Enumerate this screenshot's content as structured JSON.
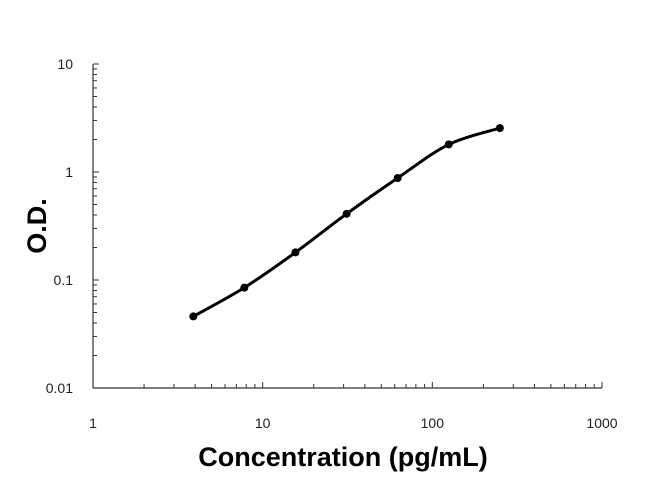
{
  "chart_data": {
    "type": "scatter",
    "title": "",
    "xlabel": "Concentration (pg/mL)",
    "ylabel": "O.D.",
    "xscale": "log",
    "yscale": "log",
    "xlim": [
      1,
      1000
    ],
    "ylim": [
      0.01,
      10
    ],
    "x_ticks": [
      1,
      10,
      100,
      1000
    ],
    "x_tick_labels": [
      "1",
      "10",
      "100",
      "1000"
    ],
    "y_ticks": [
      0.01,
      0.1,
      1,
      10
    ],
    "y_tick_labels": [
      "0.01",
      "0.1",
      "1",
      "10"
    ],
    "grid": false,
    "legend": "none",
    "series": [
      {
        "x": [
          3.9,
          7.8,
          15.6,
          31.25,
          62.5,
          125,
          250
        ],
        "y": [
          0.046,
          0.085,
          0.18,
          0.41,
          0.88,
          1.8,
          2.55
        ],
        "marker": "circle",
        "fit_line": "smooth curve",
        "color": "#000000"
      }
    ]
  }
}
